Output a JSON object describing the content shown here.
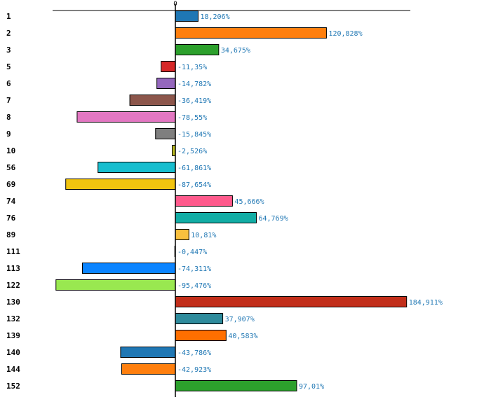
{
  "chart_data": {
    "type": "bar",
    "orientation": "horizontal",
    "title": "",
    "xlabel": "",
    "ylabel": "",
    "zero_label": "0",
    "xlim": [
      -100,
      190
    ],
    "grid": false,
    "legend": "none",
    "categories": [
      "1",
      "2",
      "3",
      "5",
      "6",
      "7",
      "8",
      "9",
      "10",
      "56",
      "69",
      "74",
      "76",
      "89",
      "111",
      "113",
      "122",
      "130",
      "132",
      "139",
      "140",
      "144",
      "152"
    ],
    "values": [
      18.206,
      120.828,
      34.675,
      -11.35,
      -14.782,
      -36.419,
      -78.55,
      -15.845,
      -2.526,
      -61.861,
      -87.654,
      45.666,
      64.769,
      10.81,
      -0.447,
      -74.311,
      -95.476,
      184.911,
      37.907,
      40.583,
      -43.786,
      -42.923,
      97.01
    ],
    "value_labels": [
      "18,206%",
      "120,828%",
      "34,675%",
      "-11,35%",
      "-14,782%",
      "-36,419%",
      "-78,55%",
      "-15,845%",
      "-2,526%",
      "-61,861%",
      "-87,654%",
      "45,666%",
      "64,769%",
      "10,81%",
      "-0,447%",
      "-74,311%",
      "-95,476%",
      "184,911%",
      "37,907%",
      "40,583%",
      "-43,786%",
      "-42,923%",
      "97,01%"
    ],
    "colors": [
      "#1f77b4",
      "#ff7f0e",
      "#2ca02c",
      "#d62728",
      "#9467bd",
      "#8c564b",
      "#e377c2",
      "#7f7f7f",
      "#bcbd22",
      "#17becf",
      "#f1c40f",
      "#ff5a8c",
      "#12ada5",
      "#f9c03e",
      "#4d8fd8",
      "#0b84ff",
      "#99e850",
      "#c22e1a",
      "#2e8b9c",
      "#ff6f00",
      "#1f77b4",
      "#ff7f0e",
      "#2ca02c"
    ],
    "label_color": "#1f77b4"
  }
}
